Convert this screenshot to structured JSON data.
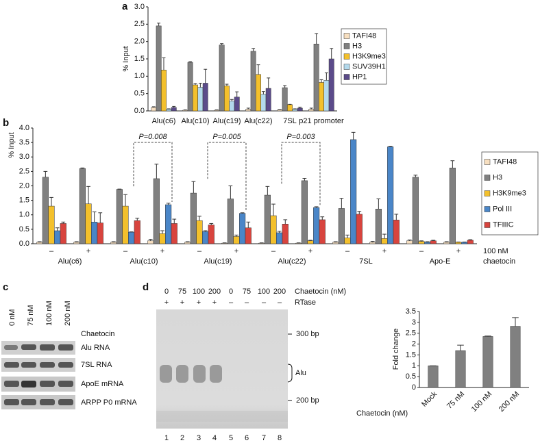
{
  "chart_data": [
    {
      "type": "bar",
      "panel": "a",
      "y_label": "% Input",
      "categories": [
        "Alu(c6)",
        "Alu(c10)",
        "Alu(c19)",
        "Alu(c22)",
        "7SL",
        "p21 promoter"
      ],
      "series": [
        {
          "name": "TAFI48",
          "color": "#f7dfc0",
          "values": [
            0.1,
            0.02,
            0.02,
            0.05,
            0.03,
            0.05
          ],
          "errors": [
            0.02,
            0.01,
            0.01,
            0.03,
            0.01,
            0.03
          ]
        },
        {
          "name": "H3",
          "color": "#808080",
          "values": [
            2.45,
            1.4,
            1.9,
            1.72,
            0.67,
            1.93
          ],
          "errors": [
            0.08,
            0.02,
            0.04,
            0.08,
            0.06,
            0.3
          ]
        },
        {
          "name": "H3K9me3",
          "color": "#f3c02c",
          "values": [
            1.18,
            0.75,
            0.72,
            1.05,
            0.18,
            0.82
          ],
          "errors": [
            0.35,
            0.04,
            0.05,
            0.28,
            0.01,
            0.08
          ]
        },
        {
          "name": "SUV39H1",
          "color": "#b3d9ec",
          "values": [
            0.05,
            0.68,
            0.28,
            0.48,
            0.05,
            0.88
          ],
          "errors": [
            0.01,
            0.12,
            0.05,
            0.08,
            0.01,
            0.22
          ]
        },
        {
          "name": "HP1",
          "color": "#5b4b8a",
          "values": [
            0.1,
            0.8,
            0.4,
            0.65,
            0.08,
            1.5
          ],
          "errors": [
            0.03,
            0.4,
            0.15,
            0.3,
            0.03,
            0.3
          ]
        }
      ],
      "ylim": [
        0,
        3
      ],
      "yticks": [
        {
          "value": 0,
          "label": "0.0"
        },
        0.5,
        {
          "value": 1,
          "label": "1.0"
        },
        1.5,
        {
          "value": 2,
          "label": "2.0"
        },
        2.5,
        {
          "value": 3,
          "label": "3.0"
        }
      ]
    },
    {
      "type": "bar",
      "panel": "b",
      "y_label": "% Input",
      "categories": [
        "–",
        "+",
        "–",
        "+",
        "–",
        "+",
        "–",
        "+",
        "–",
        "+",
        "–",
        "+"
      ],
      "groups": [
        "Alu(c6)",
        "Alu(c10)",
        "Alu(c19)",
        "Alu(c22)",
        "7SL",
        "Apo-E"
      ],
      "annotations": [
        "100 nM",
        "chaetocin"
      ],
      "p_values": [
        "P=0.008",
        "P=0.005",
        "P=0.003"
      ],
      "series": [
        {
          "name": "TAFI48",
          "color": "#f7dfc0",
          "values": [
            0.05,
            0.05,
            0.05,
            0.1,
            0.05,
            0.02,
            0.02,
            0.02,
            0.05,
            0.05,
            0.1,
            0.05
          ],
          "errors": [
            0.02,
            0.02,
            0.02,
            0.05,
            0.02,
            0.01,
            0.01,
            0.01,
            0.02,
            0.03,
            0.03,
            0.02
          ]
        },
        {
          "name": "H3",
          "color": "#808080",
          "values": [
            2.3,
            2.6,
            1.88,
            2.25,
            1.75,
            1.55,
            1.68,
            2.18,
            1.22,
            1.2,
            2.3,
            2.62
          ],
          "errors": [
            0.2,
            0.02,
            0.01,
            0.5,
            0.4,
            0.45,
            0.3,
            0.08,
            0.35,
            0.35,
            0.07,
            0.25
          ]
        },
        {
          "name": "H3K9me3",
          "color": "#f3c02c",
          "values": [
            1.3,
            1.38,
            1.3,
            0.35,
            0.8,
            0.25,
            0.97,
            0.1,
            0.2,
            0.18,
            0.08,
            0.05
          ],
          "errors": [
            0.3,
            0.6,
            0.4,
            0.1,
            0.15,
            0.05,
            0.4,
            0.02,
            0.1,
            0.15,
            0.02,
            0.01
          ]
        },
        {
          "name": "Pol III",
          "color": "#4a86c8",
          "values": [
            0.45,
            0.75,
            0.4,
            1.35,
            0.42,
            1.05,
            0.38,
            1.25,
            3.6,
            3.35,
            0.05,
            0.05
          ],
          "errors": [
            0.1,
            0.35,
            0.01,
            0.05,
            0.03,
            0.02,
            0.05,
            0.03,
            0.25,
            0.02,
            0.02,
            0.01
          ]
        },
        {
          "name": "TFIIIC",
          "color": "#d8443e",
          "values": [
            0.7,
            0.72,
            0.8,
            0.7,
            0.65,
            0.55,
            0.68,
            0.83,
            1.02,
            0.82,
            0.1,
            0.12
          ],
          "errors": [
            0.05,
            0.35,
            0.08,
            0.15,
            0.05,
            0.2,
            0.15,
            0.1,
            0.1,
            0.2,
            0.02,
            0.02
          ]
        }
      ],
      "ylim": [
        0,
        4
      ],
      "yticks": [
        {
          "value": 0,
          "label": "0.0"
        },
        0.5,
        {
          "value": 1,
          "label": "1.0"
        },
        1.5,
        {
          "value": 2,
          "label": "2.0"
        },
        2.5,
        {
          "value": 3,
          "label": "3.0"
        },
        3.5,
        {
          "value": 4,
          "label": "4.0"
        }
      ]
    },
    {
      "type": "bar",
      "y_label": "Fold change",
      "x_label": "Chaetocin (nM)",
      "categories": [
        "Mock",
        "75 nM",
        "100 nM",
        "200 nM"
      ],
      "values": [
        1,
        1.7,
        2.35,
        2.82
      ],
      "errors": [
        0,
        0.25,
        0.02,
        0.4
      ],
      "color": "#808080",
      "ylim": [
        0,
        3.5
      ],
      "yticks": [
        0,
        0.5,
        1,
        1.5,
        2,
        2.5,
        3,
        3.5
      ]
    }
  ],
  "blot": {
    "panel": "c",
    "lanes": [
      "0 nM",
      "75 nM",
      "100 nM",
      "200 nM"
    ],
    "treatment": "Chaetocin",
    "rows": [
      "Alu RNA",
      "7SL RNA",
      "ApoE mRNA",
      "ARPP P0 mRNA"
    ]
  },
  "gel": {
    "panel": "d",
    "concentrations": [
      "0",
      "75",
      "100",
      "200",
      "0",
      "75",
      "100",
      "200"
    ],
    "concentration_label": "Chaetocin (nM)",
    "rtase": [
      "+",
      "+",
      "+",
      "+",
      "–",
      "–",
      "–",
      "–"
    ],
    "rtase_label": "RTase",
    "markers": [
      "300 bp",
      "200 bp"
    ],
    "band_label": "Alu",
    "lanes": [
      "1",
      "2",
      "3",
      "4",
      "5",
      "6",
      "7",
      "8"
    ]
  }
}
